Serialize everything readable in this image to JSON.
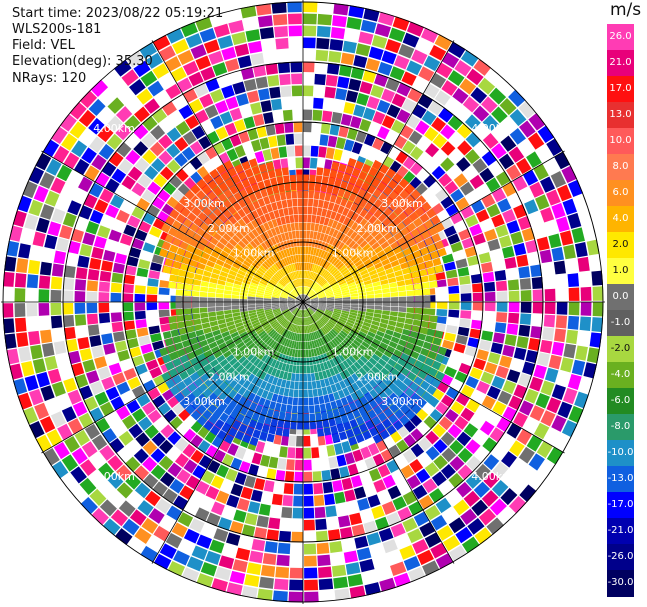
{
  "info": {
    "start_time": "Start time: 2023/08/22 05:19:21",
    "instrument": "WLS200s-181",
    "field": "Field: VEL",
    "elevation": "Elevation(deg): 35.30",
    "nrays": "NRays: 120"
  },
  "range_rings": {
    "labels": [
      "1.00km",
      "2.00km",
      "3.00km"
    ],
    "outer_label": "4.00km"
  },
  "colorbar": {
    "unit": "m/s",
    "ticks": [
      "26.0",
      "21.0",
      "17.0",
      "13.0",
      "10.0",
      "8.0",
      "6.0",
      "4.0",
      "2.0",
      "1.0",
      "0.0",
      "-1.0",
      "-2.0",
      "-4.0",
      "-6.0",
      "-8.0",
      "-10.0",
      "-13.0",
      "-17.0",
      "-21.0",
      "-26.0",
      "-30.0"
    ],
    "colors": [
      "#ff3cb4",
      "#e8007a",
      "#ff1010",
      "#e83030",
      "#ff5a5a",
      "#ff7a50",
      "#ff9020",
      "#ffb400",
      "#ffe800",
      "#ffff40",
      "#707070",
      "#606060",
      "#a8d840",
      "#6ab020",
      "#228b22",
      "#2a9a6a",
      "#1e90c8",
      "#1060e0",
      "#0000ff",
      "#0000b0",
      "#00008b",
      "#000060"
    ],
    "label_colors": [
      "#ffffff",
      "#ffffff",
      "#ffffff",
      "#ffffff",
      "#ffffff",
      "#ffffff",
      "#ffffff",
      "#ffffff",
      "#111111",
      "#111111",
      "#ffffff",
      "#ffffff",
      "#111111",
      "#ffffff",
      "#ffffff",
      "#ffffff",
      "#ffffff",
      "#ffffff",
      "#ffffff",
      "#ffffff",
      "#ffffff",
      "#ffffff"
    ]
  }
}
